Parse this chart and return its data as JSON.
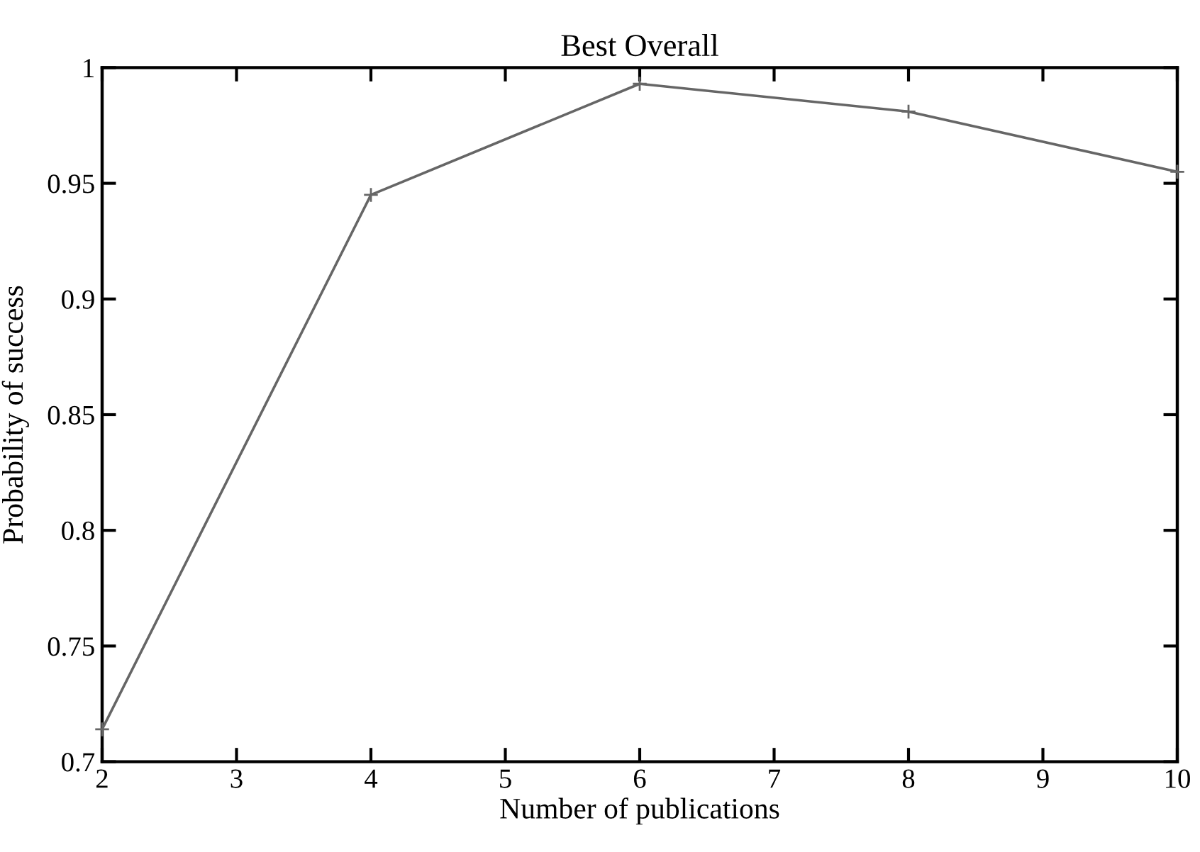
{
  "chart_data": {
    "type": "line",
    "title": "Best Overall",
    "xlabel": "Number of publications",
    "ylabel": "Probability of success",
    "x": [
      2,
      4,
      6,
      8,
      10
    ],
    "series": [
      {
        "color": "#666666",
        "values": [
          0.714,
          0.945,
          0.993,
          0.981,
          0.955
        ]
      }
    ],
    "xlim": [
      2,
      10
    ],
    "xticks": [
      2,
      3,
      4,
      5,
      6,
      7,
      8,
      9,
      10
    ],
    "ylim": [
      0.7,
      1
    ],
    "yticks": [
      0.7,
      {
        "value": 0.75,
        "label": "0.75"
      },
      {
        "value": 0.8,
        "label": "0.8"
      },
      {
        "value": 0.85,
        "label": "0.85"
      },
      {
        "value": 0.9,
        "label": "0.9"
      },
      {
        "value": 0.95,
        "label": "0.95"
      },
      1
    ],
    "grid": false,
    "legend": false,
    "marker": "cross",
    "line_style": "solid"
  }
}
